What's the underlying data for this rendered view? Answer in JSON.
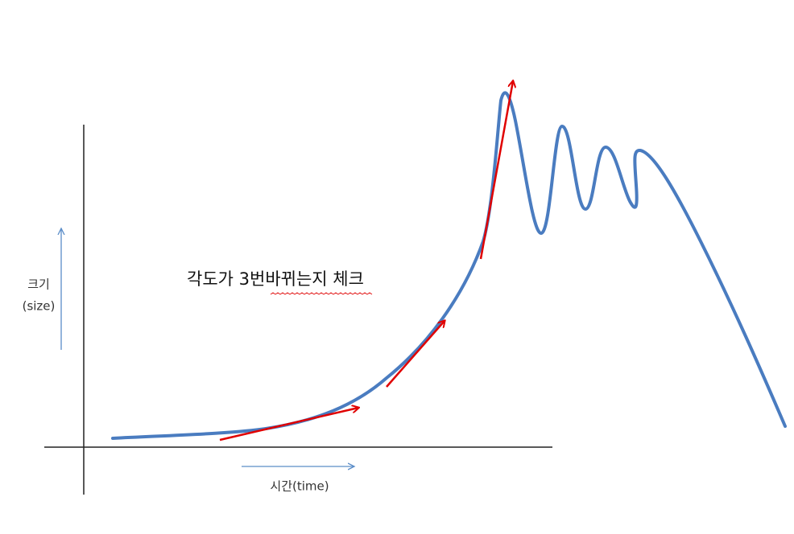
{
  "axis": {
    "y_label": "크기",
    "y_label_sub": "(size)",
    "x_label": "시간(time)"
  },
  "annotation": "각도가 3번바뀌는지 체크"
}
